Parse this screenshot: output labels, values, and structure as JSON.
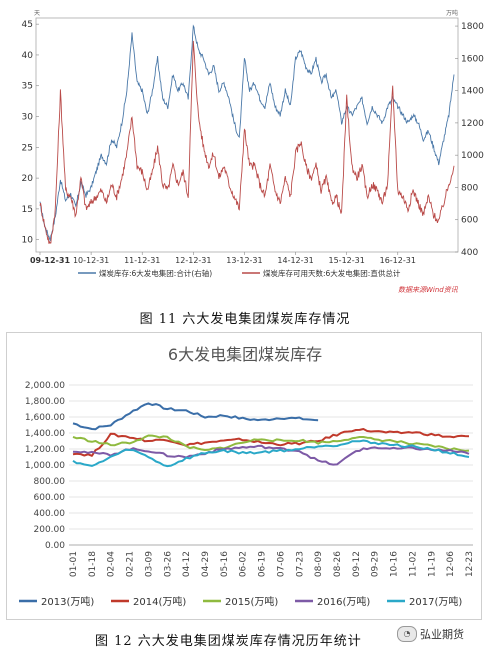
{
  "figure1": {
    "caption": "图 11 六大发电集团煤炭库存情况",
    "source": "数据来源Wind资讯",
    "chart_data": {
      "type": "line",
      "left_unit": "天",
      "right_unit": "万吨",
      "left_ylim": [
        8,
        46
      ],
      "right_ylim": [
        400,
        1850
      ],
      "left_ticks": [
        10,
        15,
        20,
        25,
        30,
        35,
        40,
        45
      ],
      "right_ticks": [
        400,
        600,
        800,
        1000,
        1200,
        1400,
        1600,
        1800
      ],
      "x_ticks": [
        "09-12-31",
        "10-12-31",
        "11-12-31",
        "12-12-31",
        "13-12-31",
        "14-12-31",
        "15-12-31",
        "16-12-31"
      ],
      "series": [
        {
          "name": "煤炭库存:6大发电集团:合计(右轴)",
          "color": "#4a78a8",
          "axis": "right",
          "x": [
            0,
            0.1,
            0.2,
            0.3,
            0.4,
            0.5,
            0.6,
            0.7,
            0.8,
            0.9,
            1.0,
            1.1,
            1.2,
            1.3,
            1.4,
            1.5,
            1.6,
            1.7,
            1.8,
            1.9,
            2.0,
            2.1,
            2.2,
            2.3,
            2.4,
            2.5,
            2.6,
            2.7,
            2.8,
            2.9,
            3.0,
            3.1,
            3.2,
            3.3,
            3.4,
            3.5,
            3.6,
            3.7,
            3.8,
            3.9,
            4.0,
            4.1,
            4.2,
            4.3,
            4.4,
            4.5,
            4.6,
            4.7,
            4.8,
            4.9,
            5.0,
            5.1,
            5.2,
            5.3,
            5.4,
            5.5,
            5.6,
            5.7,
            5.8,
            5.9,
            6.0,
            6.1,
            6.2,
            6.3,
            6.4,
            6.5,
            6.6,
            6.7,
            6.8,
            6.9,
            7.0,
            7.1,
            7.2,
            7.3,
            7.4,
            7.5,
            7.6,
            7.7,
            7.8,
            7.9,
            8.0,
            8.1
          ],
          "values": [
            700,
            550,
            480,
            620,
            850,
            720,
            760,
            680,
            830,
            750,
            800,
            900,
            1000,
            950,
            1100,
            1050,
            1200,
            1400,
            1750,
            1450,
            1400,
            1250,
            1400,
            1600,
            1350,
            1300,
            1500,
            1400,
            1450,
            1350,
            1800,
            1650,
            1600,
            1500,
            1550,
            1400,
            1450,
            1350,
            1200,
            1100,
            1600,
            1400,
            1450,
            1350,
            1300,
            1450,
            1300,
            1250,
            1400,
            1300,
            1600,
            1650,
            1550,
            1500,
            1600,
            1450,
            1500,
            1350,
            1400,
            1200,
            1300,
            1250,
            1300,
            1350,
            1200,
            1300,
            1250,
            1200,
            1300,
            1350,
            1300,
            1250,
            1200,
            1250,
            1200,
            1100,
            1150,
            1050,
            950,
            1100,
            1250,
            1500
          ]
        },
        {
          "name": "煤炭库存可用天数:6大发电集团:直供总计",
          "color": "#b94a48",
          "axis": "left",
          "x": [
            0,
            0.1,
            0.2,
            0.3,
            0.4,
            0.5,
            0.6,
            0.7,
            0.8,
            0.9,
            1.0,
            1.1,
            1.2,
            1.3,
            1.4,
            1.5,
            1.6,
            1.7,
            1.8,
            1.9,
            2.0,
            2.1,
            2.2,
            2.3,
            2.4,
            2.5,
            2.6,
            2.7,
            2.8,
            2.9,
            3.0,
            3.1,
            3.2,
            3.3,
            3.4,
            3.5,
            3.6,
            3.7,
            3.8,
            3.9,
            4.0,
            4.1,
            4.2,
            4.3,
            4.4,
            4.5,
            4.6,
            4.7,
            4.8,
            4.9,
            5.0,
            5.1,
            5.2,
            5.3,
            5.4,
            5.5,
            5.6,
            5.7,
            5.8,
            5.9,
            6.0,
            6.1,
            6.2,
            6.3,
            6.4,
            6.5,
            6.6,
            6.7,
            6.8,
            6.9,
            7.0,
            7.1,
            7.2,
            7.3,
            7.4,
            7.5,
            7.6,
            7.7,
            7.8,
            7.9,
            8.0,
            8.1
          ],
          "values": [
            16,
            12,
            9,
            15,
            34,
            18,
            17,
            14,
            20,
            15,
            16,
            17,
            18,
            16,
            19,
            17,
            20,
            24,
            30,
            22,
            21,
            18,
            21,
            25,
            19,
            18,
            22,
            19,
            21,
            17,
            42,
            30,
            25,
            22,
            24,
            20,
            22,
            19,
            17,
            15,
            28,
            22,
            22,
            19,
            17,
            22,
            18,
            16,
            20,
            17,
            24,
            26,
            22,
            20,
            22,
            18,
            20,
            16,
            17,
            14,
            33,
            22,
            20,
            22,
            17,
            19,
            18,
            16,
            19,
            35,
            18,
            17,
            15,
            18,
            16,
            14,
            17,
            14,
            13,
            16,
            19,
            22
          ]
        }
      ]
    }
  },
  "figure2": {
    "caption": "图 12 六大发电集团煤炭库存情况历年统计",
    "watermark": "弘业期货",
    "chart_data": {
      "type": "line",
      "title": "6大发电集团煤炭库存",
      "ylim": [
        0,
        2000
      ],
      "y_ticks": [
        "0.00",
        "200.00",
        "400.00",
        "600.00",
        "800.00",
        "1,000.00",
        "1,200.00",
        "1,400.00",
        "1,600.00",
        "1,800.00",
        "2,000.00"
      ],
      "categories": [
        "01-01",
        "01-18",
        "02-04",
        "02-21",
        "03-09",
        "03-26",
        "04-12",
        "04-29",
        "05-16",
        "06-02",
        "06-19",
        "07-06",
        "07-23",
        "08-09",
        "08-26",
        "09-12",
        "09-29",
        "10-16",
        "11-02",
        "11-19",
        "12-06",
        "12-23"
      ],
      "series": [
        {
          "name": "2013(万吨)",
          "color": "#3a6ea8",
          "values": [
            1520,
            1450,
            1500,
            1650,
            1780,
            1700,
            1680,
            1600,
            1620,
            1580,
            1560,
            1590,
            1580,
            1560,
            null,
            null,
            null,
            null,
            null,
            null,
            null,
            null
          ]
        },
        {
          "name": "2014(万吨)",
          "color": "#c0392b",
          "values": [
            1150,
            1120,
            1380,
            1350,
            1300,
            1320,
            1250,
            1280,
            1300,
            1320,
            1280,
            1260,
            1270,
            1300,
            1380,
            1450,
            1420,
            1400,
            1410,
            1380,
            1350,
            1360
          ]
        },
        {
          "name": "2015(万吨)",
          "color": "#8fba3f",
          "values": [
            1350,
            1300,
            1250,
            1280,
            1360,
            1350,
            1230,
            1180,
            1220,
            1280,
            1330,
            1300,
            1310,
            1280,
            1300,
            1350,
            1320,
            1300,
            1260,
            1240,
            1200,
            1180
          ]
        },
        {
          "name": "2016(万吨)",
          "color": "#7d5aa6",
          "values": [
            1180,
            1150,
            1130,
            1200,
            1180,
            1120,
            1100,
            1150,
            1200,
            1220,
            1230,
            1200,
            1180,
            1050,
            1000,
            1180,
            1220,
            1200,
            1210,
            1190,
            1180,
            1140
          ]
        },
        {
          "name": "2017(万吨)",
          "color": "#2aa8c8",
          "values": [
            1050,
            980,
            1100,
            1200,
            1100,
            980,
            1080,
            1150,
            1180,
            1150,
            1160,
            1180,
            1200,
            1240,
            1250,
            1300,
            1280,
            1250,
            1230,
            1200,
            1150,
            1100
          ]
        }
      ]
    }
  }
}
